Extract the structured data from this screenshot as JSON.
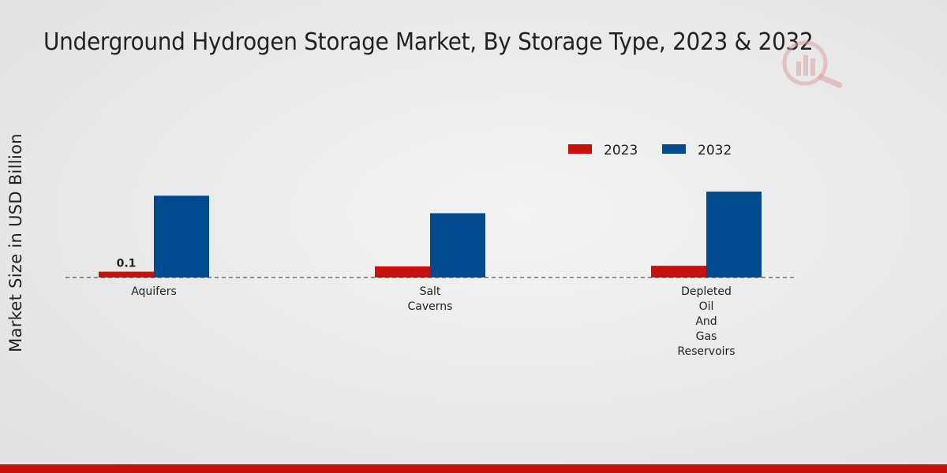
{
  "chart_data": {
    "type": "bar",
    "title": "Underground Hydrogen Storage Market, By Storage Type, 2023 & 2032",
    "xlabel": "",
    "ylabel": "Market Size in USD Billion",
    "categories": [
      [
        "Aquifers"
      ],
      [
        "Salt",
        "Caverns"
      ],
      [
        "Depleted",
        "Oil",
        "And",
        "Gas",
        "Reservoirs"
      ]
    ],
    "series": [
      {
        "name": "2023",
        "color": "#c8100c",
        "values": [
          0.1,
          0.19,
          0.2
        ]
      },
      {
        "name": "2032",
        "color": "#004a8d",
        "values": [
          1.4,
          1.1,
          1.47
        ]
      }
    ],
    "data_labels": [
      {
        "series": 0,
        "index": 0,
        "text": "0.1"
      }
    ],
    "ylim": [
      0,
      3.4
    ],
    "grid": false,
    "baseline": "dashed",
    "legend_position": "top-right"
  },
  "colors": {
    "bottom_bar": "#c8100c",
    "background": "#e9e9e9"
  }
}
